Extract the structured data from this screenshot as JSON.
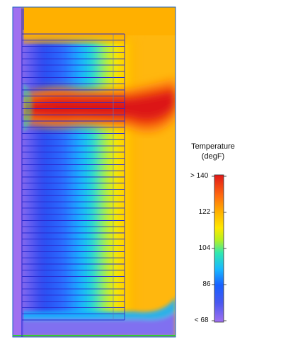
{
  "legend": {
    "title_line1": "Temperature",
    "title_line2": "(degF)",
    "ticks": [
      {
        "label": "> 140",
        "value": 140
      },
      {
        "label": "122",
        "value": 122
      },
      {
        "label": "104",
        "value": 104
      },
      {
        "label": "86",
        "value": 86
      },
      {
        "label": "< 68",
        "value": 68
      }
    ],
    "colors": [
      "#a070f0",
      "#2a48f0",
      "#18a8ff",
      "#20e0c0",
      "#b8f020",
      "#ffe000",
      "#ffa000",
      "#ff5010",
      "#e01818"
    ]
  }
}
